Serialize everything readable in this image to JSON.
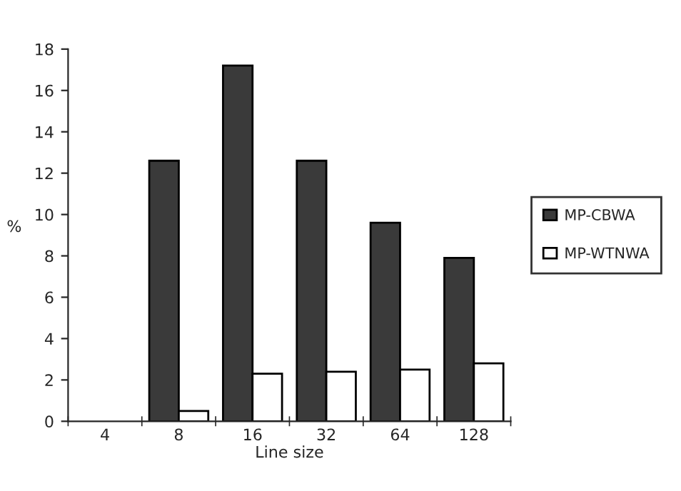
{
  "chart_data": {
    "type": "bar",
    "xlabel": "Line size",
    "ylabel": "%",
    "categories": [
      "4",
      "8",
      "16",
      "32",
      "64",
      "128"
    ],
    "series": [
      {
        "name": "MP-CBWA",
        "color": "#3a3a3a",
        "values": [
          null,
          12.6,
          17.2,
          12.6,
          9.6,
          7.9
        ]
      },
      {
        "name": "MP-WTNWA",
        "color": "#ffffff",
        "values": [
          null,
          0.5,
          2.3,
          2.4,
          2.5,
          2.8
        ]
      }
    ],
    "ylim": [
      0,
      18
    ],
    "yticks": [
      0,
      2,
      4,
      6,
      8,
      10,
      12,
      14,
      16,
      18
    ],
    "grid": false,
    "legend": "right"
  }
}
